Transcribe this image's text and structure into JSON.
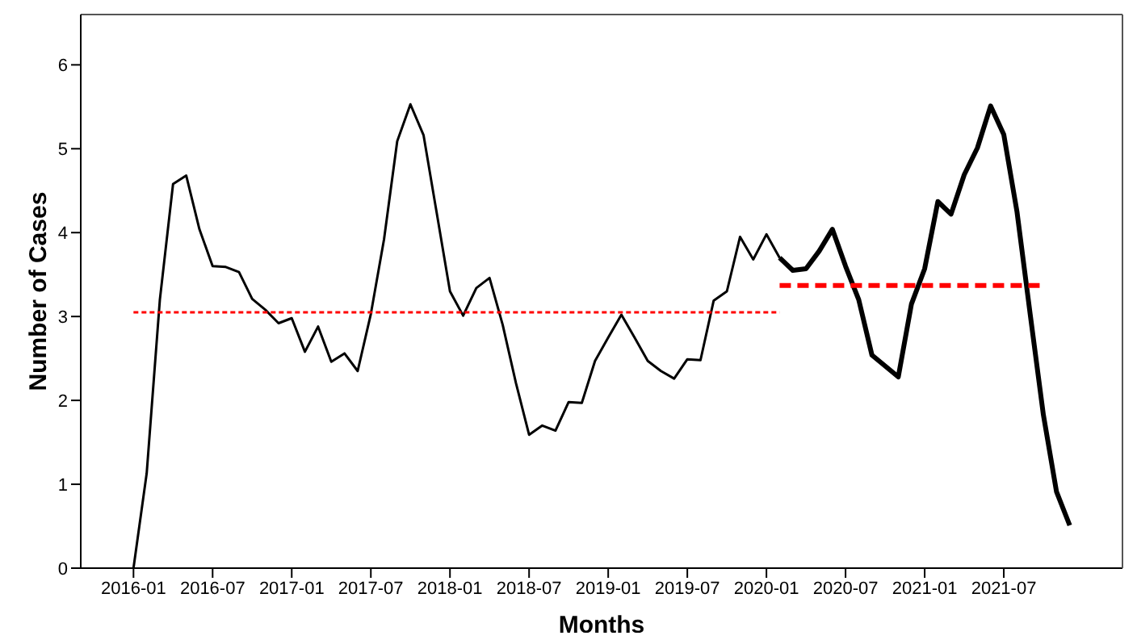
{
  "chart_data": {
    "type": "line",
    "xlabel": "Months",
    "ylabel": "Number of Cases",
    "xlim": [
      "2015-09",
      "2022-04"
    ],
    "xticks": [
      "2016-01",
      "2016-07",
      "2017-01",
      "2017-07",
      "2018-01",
      "2018-07",
      "2019-01",
      "2019-07",
      "2020-01",
      "2020-07",
      "2021-01",
      "2021-07"
    ],
    "ylim": [
      0,
      6.6
    ],
    "yticks": [
      0,
      1,
      2,
      3,
      4,
      5,
      6
    ],
    "marker": "none",
    "series": [
      {
        "color": "#000000",
        "line_style": "solid",
        "x": [
          "2016-01",
          "2016-02",
          "2016-03",
          "2016-04",
          "2016-05",
          "2016-06",
          "2016-07",
          "2016-08",
          "2016-09",
          "2016-10",
          "2016-11",
          "2016-12",
          "2017-01",
          "2017-02",
          "2017-03",
          "2017-04",
          "2017-05",
          "2017-06",
          "2017-07",
          "2017-08",
          "2017-09",
          "2017-10",
          "2017-11",
          "2017-12",
          "2018-01",
          "2018-02",
          "2018-03",
          "2018-04",
          "2018-05",
          "2018-06",
          "2018-07",
          "2018-08",
          "2018-09",
          "2018-10",
          "2018-11",
          "2018-12",
          "2019-01",
          "2019-02",
          "2019-03",
          "2019-04",
          "2019-05",
          "2019-06",
          "2019-07",
          "2019-08",
          "2019-09",
          "2019-10",
          "2019-11",
          "2019-12",
          "2020-01",
          "2020-02"
        ],
        "values": [
          0,
          1.13,
          3.2,
          4.58,
          4.68,
          4.04,
          3.6,
          3.59,
          3.53,
          3.21,
          3.08,
          2.92,
          2.98,
          2.58,
          2.88,
          2.46,
          2.56,
          2.35,
          3.03,
          3.92,
          5.09,
          5.53,
          5.16,
          4.23,
          3.3,
          3.01,
          3.34,
          3.46,
          2.9,
          2.21,
          1.59,
          1.7,
          1.64,
          1.98,
          1.97,
          2.47,
          2.75,
          3.02,
          2.75,
          2.47,
          2.35,
          2.26,
          2.49,
          2.48,
          3.19,
          3.3,
          3.95,
          3.68,
          3.98,
          3.7
        ]
      },
      {
        "color": "#000000",
        "line_style": "solid",
        "x": [
          "2020-02",
          "2020-03",
          "2020-04",
          "2020-05",
          "2020-06",
          "2020-07",
          "2020-08",
          "2020-09",
          "2020-10",
          "2020-11",
          "2020-12",
          "2021-01",
          "2021-02",
          "2021-03",
          "2021-04",
          "2021-05",
          "2021-06",
          "2021-07",
          "2021-08",
          "2021-09",
          "2021-10",
          "2021-11",
          "2021-12"
        ],
        "values": [
          3.7,
          3.55,
          3.57,
          3.78,
          4.04,
          3.6,
          3.2,
          2.54,
          2.41,
          2.28,
          3.15,
          3.57,
          4.37,
          4.22,
          4.69,
          5.01,
          5.51,
          5.17,
          4.25,
          3.03,
          1.83,
          0.91,
          0.51
        ]
      },
      {
        "color": "#ff0000",
        "line_style": "dashed",
        "x": [
          "2016-01",
          "2020-02"
        ],
        "values": [
          3.05,
          3.05
        ]
      },
      {
        "color": "#ff0000",
        "line_style": "dashed",
        "x": [
          "2020-02",
          "2021-10"
        ],
        "values": [
          3.37,
          3.37
        ]
      }
    ]
  }
}
